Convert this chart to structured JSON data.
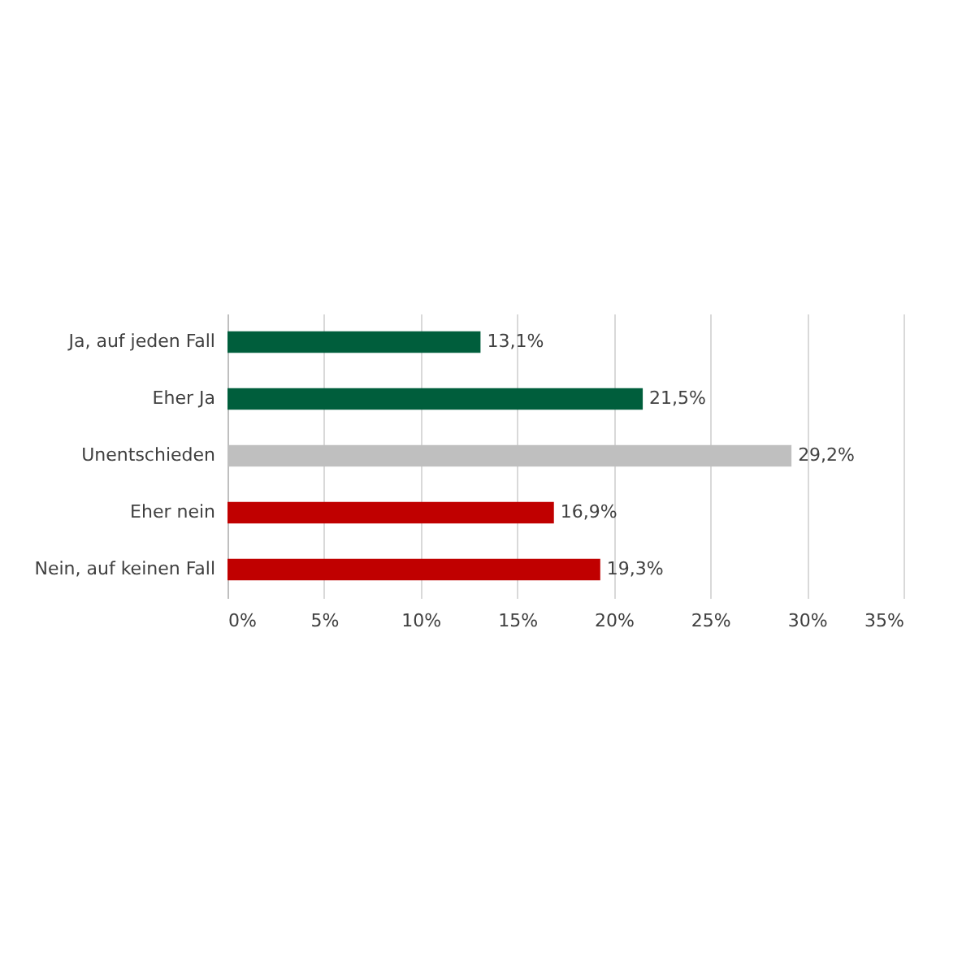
{
  "chart_data": {
    "type": "bar",
    "orientation": "horizontal",
    "categories": [
      "Ja, auf jeden Fall",
      "Eher Ja",
      "Unentschieden",
      "Eher nein",
      "Nein, auf keinen Fall"
    ],
    "values": [
      13.1,
      21.5,
      29.2,
      16.9,
      19.3
    ],
    "colors": [
      "#005e3c",
      "#005e3c",
      "#bfbfbf",
      "#c00000",
      "#c00000"
    ],
    "value_labels": [
      "13,1%",
      "21,5%",
      "29,2%",
      "16,9%",
      "19,3%"
    ],
    "xlim": [
      0,
      35
    ],
    "xticks": [
      {
        "value": 0,
        "label": "0%"
      },
      {
        "value": 5,
        "label": "5%"
      },
      {
        "value": 10,
        "label": "10%"
      },
      {
        "value": 15,
        "label": "15%"
      },
      {
        "value": 20,
        "label": "20%"
      },
      {
        "value": 25,
        "label": "25%"
      },
      {
        "value": 30,
        "label": "30%"
      },
      {
        "value": 35,
        "label": "35%"
      }
    ],
    "grid": "x"
  }
}
